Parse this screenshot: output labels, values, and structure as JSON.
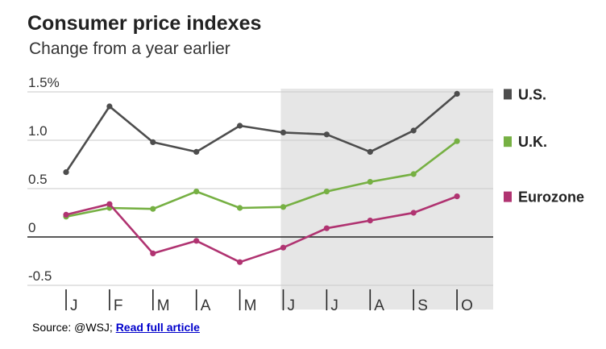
{
  "chart_data": {
    "type": "line",
    "title": "Consumer price indexes",
    "subtitle": "Change from a year earlier",
    "categories": [
      "J",
      "F",
      "M",
      "A",
      "M",
      "J",
      "J",
      "A",
      "S",
      "O"
    ],
    "y_ticks": [
      "1.5%",
      "1.0",
      "0.5",
      "0",
      "-0.5"
    ],
    "ylim": [
      -0.5,
      1.5
    ],
    "shaded_range": [
      "J",
      "O"
    ],
    "grid": "horizontal",
    "legend_position": "right",
    "series": [
      {
        "name": "U.S.",
        "color": "#4d4d4d",
        "values": [
          0.67,
          1.35,
          0.98,
          0.88,
          1.15,
          1.08,
          1.06,
          0.88,
          1.1,
          1.48
        ]
      },
      {
        "name": "U.K.",
        "color": "#76b043",
        "values": [
          0.21,
          0.3,
          0.29,
          0.47,
          0.3,
          0.31,
          0.47,
          0.57,
          0.65,
          0.99
        ]
      },
      {
        "name": "Eurozone",
        "color": "#b03371",
        "values": [
          0.23,
          0.34,
          -0.17,
          -0.04,
          -0.26,
          -0.11,
          0.09,
          0.17,
          0.25,
          0.42
        ]
      }
    ]
  },
  "source": {
    "prefix": "Source: @WSJ; ",
    "link_label": "Read full article"
  }
}
